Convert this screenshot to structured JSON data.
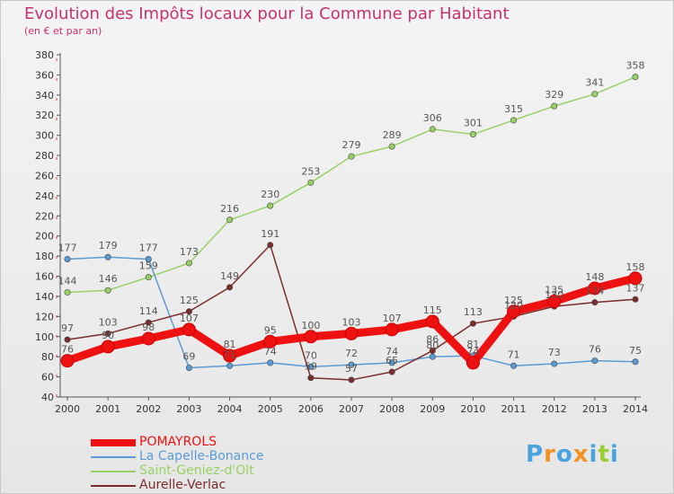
{
  "header": {
    "title": "Evolution des Impôts locaux pour la Commune par Habitant",
    "subtitle": "(en € et par an)"
  },
  "logo": {
    "letters": [
      "P",
      "r",
      "o",
      "x",
      "i",
      "t",
      "i"
    ],
    "colors": [
      "#4aa3df",
      "#f29321",
      "#4aa3df",
      "#f29321",
      "#4aa3df",
      "#9acd32",
      "#4aa3df"
    ]
  },
  "chart_data": {
    "type": "line",
    "title": "Evolution des Impôts locaux pour la Commune par Habitant",
    "subtitle": "(en € et par an)",
    "xlabel": "",
    "ylabel": "",
    "x": [
      "2000",
      "2001",
      "2002",
      "2003",
      "2004",
      "2005",
      "2006",
      "2007",
      "2008",
      "2009",
      "2010",
      "2011",
      "2012",
      "2013",
      "2014"
    ],
    "ylim": [
      40,
      380
    ],
    "yticks": [
      40,
      60,
      80,
      100,
      120,
      140,
      160,
      180,
      200,
      220,
      240,
      260,
      280,
      300,
      320,
      340,
      360,
      380
    ],
    "grid": false,
    "legend_position": "bottom-left",
    "series": [
      {
        "name": "Saint-Geniez-d'Olt",
        "color": "#99d066",
        "width": 1.5,
        "values": [
          144,
          146,
          159,
          173,
          216,
          230,
          253,
          279,
          289,
          306,
          301,
          315,
          329,
          341,
          358
        ]
      },
      {
        "name": "La Capelle-Bonance",
        "color": "#5b9bd5",
        "width": 1.5,
        "values": [
          177,
          179,
          177,
          69,
          71,
          74,
          70,
          72,
          74,
          80,
          81,
          71,
          73,
          76,
          75
        ]
      },
      {
        "name": "Aurelle-Verlac",
        "color": "#7b2c2c",
        "width": 1.5,
        "values": [
          97,
          103,
          114,
          125,
          149,
          191,
          59,
          57,
          65,
          86,
          113,
          120,
          130,
          134,
          137
        ]
      },
      {
        "name": "POMAYROLS",
        "color": "#ee1111",
        "width": 9,
        "values": [
          76,
          90,
          98,
          107,
          81,
          95,
          100,
          103,
          107,
          115,
          74,
          125,
          135,
          148,
          158
        ]
      }
    ]
  },
  "legend": {
    "items": [
      {
        "label": "POMAYROLS",
        "color": "#ee1111",
        "thickness": 8
      },
      {
        "label": "La Capelle-Bonance",
        "color": "#5b9bd5",
        "thickness": 2
      },
      {
        "label": "Saint-Geniez-d'Olt",
        "color": "#99d066",
        "thickness": 2
      },
      {
        "label": "Aurelle-Verlac",
        "color": "#7b2c2c",
        "thickness": 2
      }
    ]
  }
}
